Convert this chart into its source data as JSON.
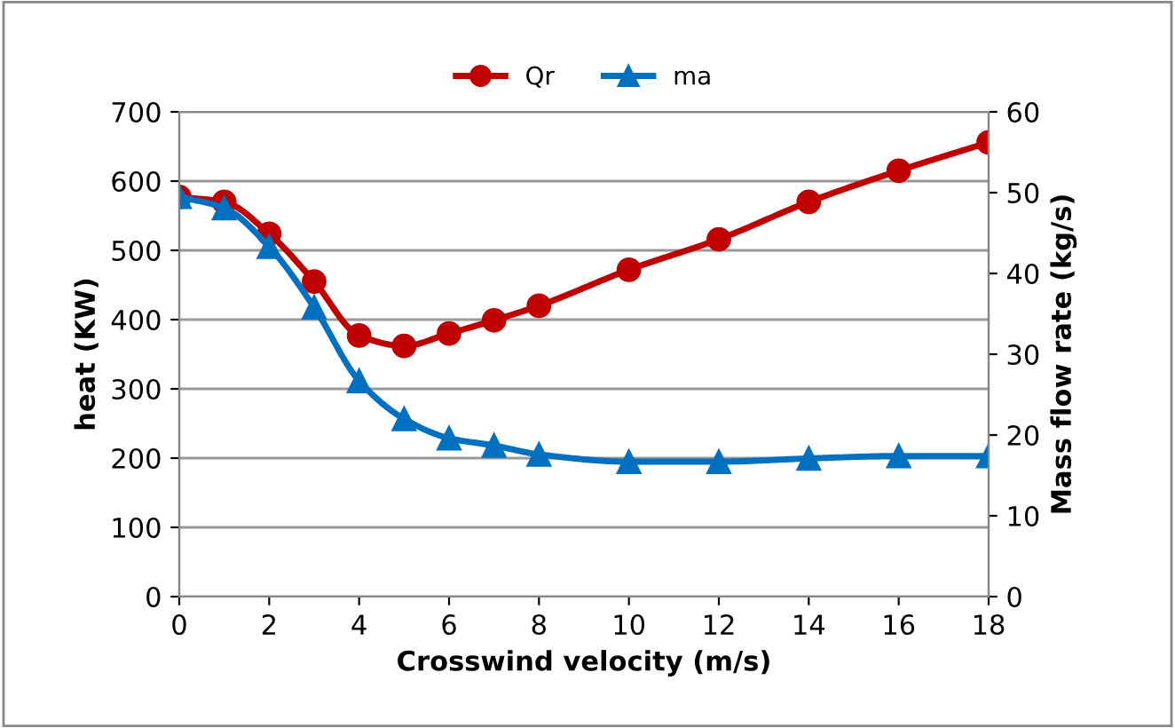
{
  "chart_data": {
    "type": "line",
    "xlabel": "Crosswind velocity (m/s)",
    "ylabel": "heat (KW)",
    "y2label": "Mass flow rate (kg/s)",
    "x": [
      0,
      1,
      2,
      3,
      4,
      5,
      6,
      7,
      8,
      10,
      12,
      14,
      16,
      18
    ],
    "series": [
      {
        "name": "Qr",
        "color": "#c00000",
        "marker": "circle",
        "values": [
          577,
          570,
          524,
          455,
          377,
          362,
          380,
          399,
          420,
          472,
          516,
          570,
          615,
          656
        ]
      },
      {
        "name": "ma",
        "color": "#0070c0",
        "marker": "triangle",
        "axis": "y2",
        "values": [
          49.5,
          48.1,
          43.3,
          35.8,
          26.7,
          22.0,
          19.6,
          18.7,
          17.6,
          16.7,
          16.7,
          17.1,
          17.4,
          17.4
        ]
      }
    ],
    "xlim": [
      0,
      18
    ],
    "xticks": [
      0,
      2,
      4,
      6,
      8,
      10,
      12,
      14,
      16,
      18
    ],
    "ylim": [
      0,
      700
    ],
    "yticks": [
      0,
      100,
      200,
      300,
      400,
      500,
      600,
      700
    ],
    "y2lim": [
      0,
      60
    ],
    "y2ticks": [
      0,
      10,
      20,
      30,
      40,
      50,
      60
    ],
    "grid": "y",
    "legend": "top",
    "line_style": "solid"
  }
}
